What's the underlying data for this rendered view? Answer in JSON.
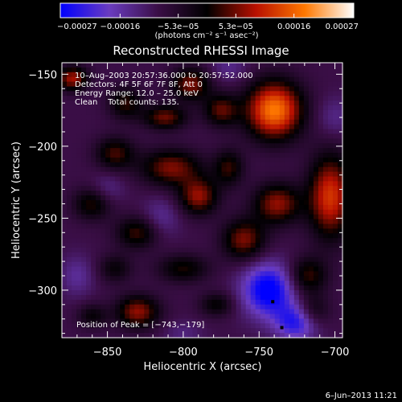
{
  "chart_data": {
    "type": "heatmap",
    "title": "Reconstructed RHESSI Image",
    "xlabel": "Heliocentric X (arcsec)",
    "ylabel": "Heliocentric Y (arcsec)",
    "xlim": [
      -880,
      -695
    ],
    "ylim": [
      -333,
      -142
    ],
    "x_ticks": [
      -850,
      -800,
      -750,
      -700
    ],
    "y_ticks": [
      -150,
      -200,
      -250,
      -300
    ],
    "x_tick_labels": [
      "−850",
      "−800",
      "−750",
      "−700"
    ],
    "y_tick_labels": [
      "−150",
      "−200",
      "−250",
      "−300"
    ],
    "colorbar": {
      "range": [
        -0.00027,
        0.00027
      ],
      "tick_values": [
        -0.00027,
        -0.00016,
        -5.3e-05,
        5.3e-05,
        0.00016,
        0.00027
      ],
      "tick_labels": [
        "−0.00027",
        "−0.00016",
        "−5.3e−05",
        "5.3e−05",
        "0.00016",
        "0.00027"
      ],
      "unit_label": "(photons cm⁻² s⁻¹ asec⁻²)",
      "colormap": [
        "#0000ff",
        "#6a3cc0",
        "#3a0e46",
        "#000000",
        "#b81000",
        "#ff7800",
        "#ffffff"
      ]
    },
    "annotations": [
      "10–Aug–2003 20:57:36.000 to 20:57:52.000",
      "Detectors: 4F 5F 6F 7F 8F, Att 0",
      "Energy Range: 12.0 – 25.0 keV",
      "Clean    Total counts: 135."
    ],
    "peak": {
      "label": "Position of Peak = [−743,−179]",
      "x": -743,
      "y": -179
    },
    "markers": [
      {
        "x": -741,
        "y": -308
      },
      {
        "x": -735,
        "y": -326
      }
    ],
    "blobs": [
      {
        "x": -740,
        "y": -175,
        "sx": 13,
        "sy": 14,
        "v": 0.00027
      },
      {
        "x": -703,
        "y": -235,
        "sx": 10,
        "sy": 20,
        "v": 0.00021
      },
      {
        "x": -795,
        "y": -157,
        "sx": 9,
        "sy": 8,
        "v": 0.00015
      },
      {
        "x": -775,
        "y": -175,
        "sx": 8,
        "sy": 8,
        "v": 0.00013
      },
      {
        "x": -812,
        "y": -180,
        "sx": 10,
        "sy": 6,
        "v": 0.00014
      },
      {
        "x": -838,
        "y": -170,
        "sx": 8,
        "sy": 8,
        "v": 0.00011
      },
      {
        "x": -808,
        "y": -215,
        "sx": 14,
        "sy": 9,
        "v": 0.00015
      },
      {
        "x": -845,
        "y": -205,
        "sx": 9,
        "sy": 8,
        "v": 0.00012
      },
      {
        "x": -790,
        "y": -235,
        "sx": 9,
        "sy": 9,
        "v": 0.00016
      },
      {
        "x": -770,
        "y": -215,
        "sx": 7,
        "sy": 9,
        "v": 0.00011
      },
      {
        "x": -738,
        "y": -240,
        "sx": 11,
        "sy": 10,
        "v": 0.00016
      },
      {
        "x": -760,
        "y": -265,
        "sx": 10,
        "sy": 10,
        "v": 0.00015
      },
      {
        "x": -830,
        "y": -260,
        "sx": 10,
        "sy": 8,
        "v": 0.00012
      },
      {
        "x": -860,
        "y": -240,
        "sx": 9,
        "sy": 8,
        "v": 0.00011
      },
      {
        "x": -800,
        "y": -285,
        "sx": 12,
        "sy": 7,
        "v": 0.0001
      },
      {
        "x": -845,
        "y": -285,
        "sx": 8,
        "sy": 7,
        "v": 8e-05
      },
      {
        "x": -718,
        "y": -290,
        "sx": 9,
        "sy": 9,
        "v": 0.00012
      },
      {
        "x": -715,
        "y": -315,
        "sx": 8,
        "sy": 8,
        "v": 0.0001
      },
      {
        "x": -830,
        "y": -315,
        "sx": 10,
        "sy": 8,
        "v": 0.00016
      },
      {
        "x": -778,
        "y": -310,
        "sx": 8,
        "sy": 6,
        "v": 9e-05
      },
      {
        "x": -873,
        "y": -153,
        "sx": 7,
        "sy": 6,
        "v": 0.00017
      },
      {
        "x": -860,
        "y": -318,
        "sx": 7,
        "sy": 6,
        "v": 8e-05
      },
      {
        "x": -744,
        "y": -300,
        "sx": 12,
        "sy": 13,
        "v": -0.0002
      },
      {
        "x": -725,
        "y": -322,
        "sx": 10,
        "sy": 9,
        "v": -0.00016
      },
      {
        "x": -815,
        "y": -250,
        "sx": 9,
        "sy": 10,
        "v": -6e-05
      },
      {
        "x": -850,
        "y": -230,
        "sx": 8,
        "sy": 8,
        "v": -5e-05
      },
      {
        "x": -700,
        "y": -180,
        "sx": 9,
        "sy": 10,
        "v": -5e-05
      },
      {
        "x": -770,
        "y": -145,
        "sx": 9,
        "sy": 8,
        "v": -5e-05
      },
      {
        "x": -870,
        "y": -290,
        "sx": 8,
        "sy": 10,
        "v": -6e-05
      },
      {
        "x": -800,
        "y": -330,
        "sx": 9,
        "sy": 6,
        "v": -4e-05
      }
    ]
  },
  "footer": {
    "date": "6–Jun–2013 11:21"
  }
}
